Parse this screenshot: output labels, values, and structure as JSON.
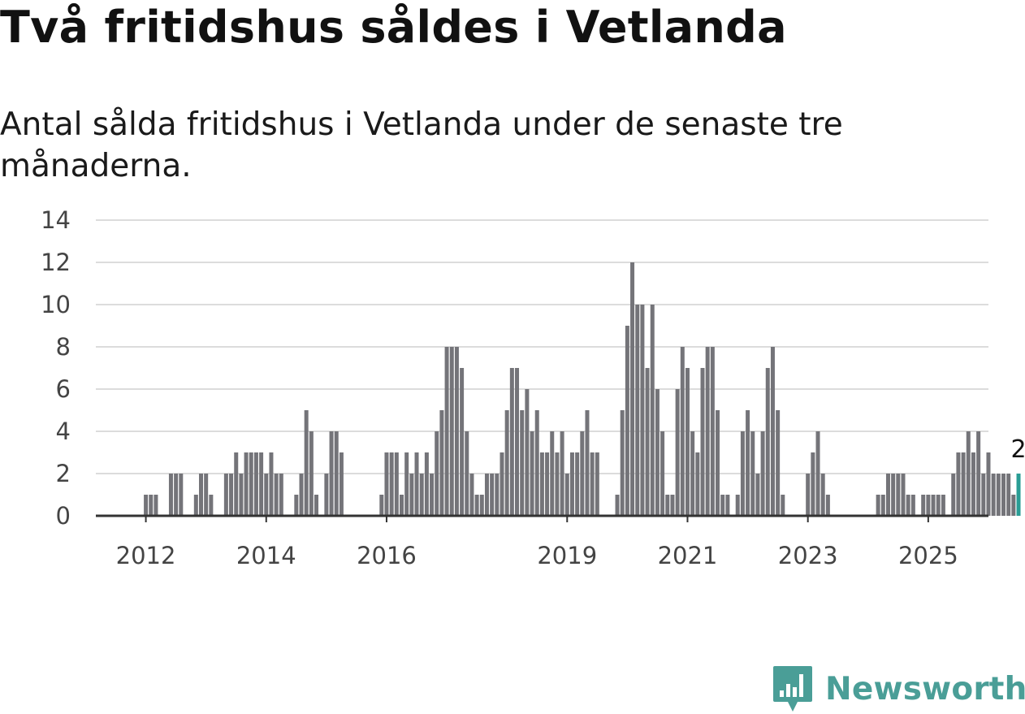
{
  "title": "Två fritidshus såldes i Vetlanda",
  "subtitle": "Antal sålda fritidshus i Vetlanda under de senaste tre månaderna.",
  "brand": {
    "name": "Newsworthy",
    "icon": "newsworthy-logo-icon",
    "color": "#4a9e97"
  },
  "chart_data": {
    "type": "bar",
    "ylim": [
      0,
      14
    ],
    "yticks": [
      0,
      2,
      4,
      6,
      8,
      10,
      12,
      14
    ],
    "xticks": [
      "2012",
      "2014",
      "2016",
      "2019",
      "2021",
      "2023",
      "2025"
    ],
    "grid": true,
    "bar_color": "#747479",
    "highlight_color": "#2a9d95",
    "highlight_label": "2",
    "values": [
      0,
      0,
      0,
      0,
      0,
      0,
      0,
      0,
      0,
      1,
      1,
      1,
      0,
      0,
      2,
      2,
      2,
      0,
      0,
      1,
      2,
      2,
      1,
      0,
      0,
      2,
      2,
      3,
      2,
      3,
      3,
      3,
      3,
      2,
      3,
      2,
      2,
      0,
      0,
      1,
      2,
      5,
      4,
      1,
      0,
      2,
      4,
      4,
      3,
      0,
      0,
      0,
      0,
      0,
      0,
      0,
      1,
      3,
      3,
      3,
      1,
      3,
      2,
      3,
      2,
      3,
      2,
      4,
      5,
      8,
      8,
      8,
      7,
      4,
      2,
      1,
      1,
      2,
      2,
      2,
      3,
      5,
      7,
      7,
      5,
      6,
      4,
      5,
      3,
      3,
      4,
      3,
      4,
      2,
      3,
      3,
      4,
      5,
      3,
      3,
      0,
      0,
      0,
      1,
      5,
      9,
      12,
      10,
      10,
      7,
      10,
      6,
      4,
      1,
      1,
      6,
      8,
      7,
      4,
      3,
      7,
      8,
      8,
      5,
      1,
      1,
      0,
      1,
      4,
      5,
      4,
      2,
      4,
      7,
      8,
      5,
      1,
      0,
      0,
      0,
      0,
      2,
      3,
      4,
      2,
      1,
      0,
      0,
      0,
      0,
      0,
      0,
      0,
      0,
      0,
      1,
      1,
      2,
      2,
      2,
      2,
      1,
      1,
      0,
      1,
      1,
      1,
      1,
      1,
      0,
      2,
      3,
      3,
      4,
      3,
      4,
      2,
      3,
      2,
      2,
      2,
      2,
      1,
      2
    ]
  }
}
